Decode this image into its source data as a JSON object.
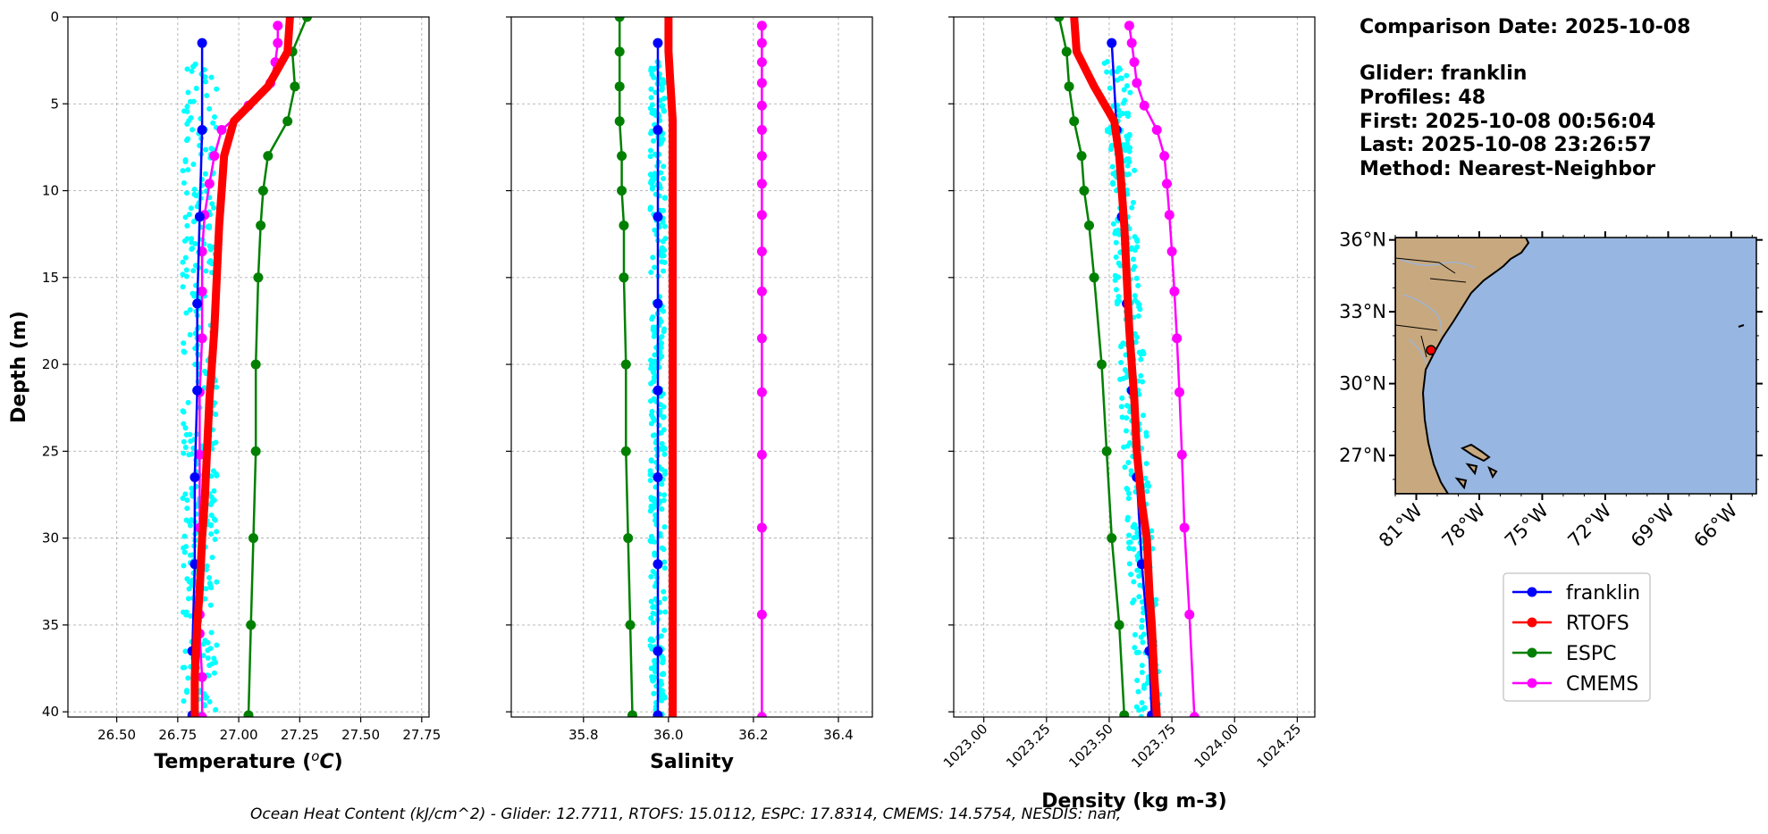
{
  "info": {
    "comparison_date": "Comparison Date: 2025-10-08",
    "glider": "Glider: franklin",
    "profiles": "Profiles: 48",
    "first": "First: 2025-10-08 00:56:04",
    "last": "Last: 2025-10-08 23:26:57",
    "method": "Method: Nearest-Neighbor"
  },
  "footer": "Ocean Heat Content (kJ/cm^2) - Glider: 12.7711,  RTOFS: 15.0112,  ESPC: 17.8314,  CMEMS: 14.5754,  NESDIS: nan,",
  "colors": {
    "franklin": "#0000ff",
    "RTOFS": "#ff0000",
    "ESPC": "#008000",
    "CMEMS": "#ff00ff",
    "glider_points": "#00ffff",
    "ocean": "#97b6e1",
    "land": "#c8a87e",
    "rivers": "#a0b4d0"
  },
  "legend": [
    {
      "label": "franklin",
      "color": "#0000ff"
    },
    {
      "label": "RTOFS",
      "color": "#ff0000"
    },
    {
      "label": "ESPC",
      "color": "#008000"
    },
    {
      "label": "CMEMS",
      "color": "#ff00ff"
    }
  ],
  "map": {
    "lat_ticks": [
      "36°N",
      "33°N",
      "30°N",
      "27°N"
    ],
    "lat_values": [
      36,
      33,
      30,
      27
    ],
    "lon_ticks": [
      "81°W",
      "78°W",
      "75°W",
      "72°W",
      "69°W",
      "66°W"
    ],
    "lon_values": [
      -81,
      -78,
      -75,
      -72,
      -69,
      -66
    ],
    "extent": {
      "lon": [
        -82,
        -64.8
      ],
      "lat": [
        25.4,
        36.1
      ]
    },
    "glider_location": {
      "lon": -80.3,
      "lat": 31.4
    }
  },
  "chart_data": [
    {
      "type": "line",
      "xlabel": "Temperature (°C)",
      "ylabel": "Depth (m)",
      "xlim": [
        26.3,
        27.78
      ],
      "ylim": [
        40.3,
        0
      ],
      "xticks": [
        26.5,
        26.75,
        27.0,
        27.25,
        27.5,
        27.75
      ],
      "xtick_labels": [
        "26.50",
        "26.75",
        "27.00",
        "27.25",
        "27.50",
        "27.75"
      ],
      "yticks": [
        0,
        5,
        10,
        15,
        20,
        25,
        30,
        35,
        40
      ],
      "ytick_labels": [
        "0",
        "5",
        "10",
        "15",
        "20",
        "25",
        "30",
        "35",
        "40"
      ],
      "glider_scatter": {
        "x_center": 26.84,
        "x_spread": 0.07,
        "depth_range": [
          2.5,
          40.3
        ]
      },
      "series": [
        {
          "name": "franklin",
          "x": [
            26.85,
            26.85,
            26.84,
            26.83,
            26.83,
            26.82,
            26.82,
            26.81,
            26.81
          ],
          "depth": [
            1.5,
            6.5,
            11.5,
            16.5,
            21.5,
            26.5,
            31.5,
            36.5,
            40.2
          ]
        },
        {
          "name": "RTOFS",
          "x": [
            27.21,
            27.2,
            27.12,
            26.98,
            26.94,
            26.93,
            26.92,
            26.91,
            26.9,
            26.89,
            26.88,
            26.87,
            26.86,
            26.85,
            26.84,
            26.83,
            26.82,
            26.82
          ],
          "depth": [
            0,
            2,
            4,
            6,
            8,
            10,
            12,
            15,
            18,
            20,
            22,
            25,
            28,
            30,
            33,
            35,
            38,
            40.3
          ]
        },
        {
          "name": "ESPC",
          "x": [
            27.28,
            27.22,
            27.23,
            27.2,
            27.12,
            27.1,
            27.09,
            27.08,
            27.07,
            27.07,
            27.06,
            27.05,
            27.04
          ],
          "depth": [
            0,
            2,
            4,
            6,
            8,
            10,
            12,
            15,
            20,
            25,
            30,
            35,
            40.2
          ]
        },
        {
          "name": "CMEMS",
          "x": [
            27.16,
            27.16,
            27.15,
            27.13,
            27.04,
            26.93,
            26.9,
            26.88,
            26.86,
            26.85,
            26.85,
            26.85,
            26.84,
            26.84,
            26.84,
            26.84,
            26.84,
            26.85,
            26.85
          ],
          "depth": [
            0.5,
            1.5,
            2.6,
            3.8,
            5.1,
            6.5,
            8.0,
            9.6,
            11.4,
            13.5,
            15.8,
            18.5,
            21.6,
            25.2,
            29.4,
            34.4,
            35.5,
            38.0,
            40.3
          ]
        }
      ]
    },
    {
      "type": "line",
      "xlabel": "Salinity",
      "xlim": [
        35.63,
        36.48
      ],
      "ylim": [
        40.3,
        0
      ],
      "xticks": [
        35.8,
        36.0,
        36.2,
        36.4
      ],
      "xtick_labels": [
        "35.8",
        "36.0",
        "36.2",
        "36.4"
      ],
      "yticks": [
        0,
        5,
        10,
        15,
        20,
        25,
        30,
        35,
        40
      ],
      "glider_scatter": {
        "x_center": 35.975,
        "x_spread": 0.018,
        "depth_range": [
          2.5,
          40.3
        ]
      },
      "series": [
        {
          "name": "franklin",
          "x": [
            35.975,
            35.975,
            35.975,
            35.975,
            35.975,
            35.975,
            35.975,
            35.975,
            35.975
          ],
          "depth": [
            1.5,
            6.5,
            11.5,
            16.5,
            21.5,
            26.5,
            31.5,
            36.5,
            40.2
          ]
        },
        {
          "name": "RTOFS",
          "x": [
            36.0,
            36.0,
            36.005,
            36.01,
            36.01,
            36.01,
            36.01,
            36.01,
            36.01,
            36.01,
            36.01,
            36.01,
            36.01,
            36.01,
            36.01,
            36.01
          ],
          "depth": [
            0,
            2,
            4,
            6,
            8,
            10,
            12,
            15,
            18,
            20,
            25,
            30,
            33,
            35,
            38,
            40.3
          ]
        },
        {
          "name": "ESPC",
          "x": [
            35.885,
            35.885,
            35.885,
            35.885,
            35.89,
            35.89,
            35.895,
            35.895,
            35.9,
            35.9,
            35.905,
            35.91,
            35.915
          ],
          "depth": [
            0,
            2,
            4,
            6,
            8,
            10,
            12,
            15,
            20,
            25,
            30,
            35,
            40.2
          ]
        },
        {
          "name": "CMEMS",
          "x": [
            36.22,
            36.22,
            36.22,
            36.22,
            36.22,
            36.22,
            36.22,
            36.22,
            36.22,
            36.22,
            36.22,
            36.22,
            36.22,
            36.22,
            36.22,
            36.22,
            36.22
          ],
          "depth": [
            0.5,
            1.5,
            2.6,
            3.8,
            5.1,
            6.5,
            8.0,
            9.6,
            11.4,
            13.5,
            15.8,
            18.5,
            21.6,
            25.2,
            29.4,
            34.4,
            40.3
          ]
        }
      ]
    },
    {
      "type": "line",
      "xlabel": "Density (kg m-3)",
      "xlim": [
        1022.88,
        1024.32
      ],
      "ylim": [
        40.3,
        0
      ],
      "xticks": [
        1023.0,
        1023.25,
        1023.5,
        1023.75,
        1024.0,
        1024.25
      ],
      "xtick_labels": [
        "1023.00",
        "1023.25",
        "1023.50",
        "1023.75",
        "1024.00",
        "1024.25"
      ],
      "yticks": [
        0,
        5,
        10,
        15,
        20,
        25,
        30,
        35,
        40
      ],
      "glider_scatter": {
        "x_center_top": 1023.52,
        "x_center_bottom": 1023.66,
        "x_spread": 0.05,
        "depth_range": [
          2.5,
          40.3
        ]
      },
      "series": [
        {
          "name": "franklin",
          "x": [
            1023.51,
            1023.53,
            1023.55,
            1023.57,
            1023.59,
            1023.61,
            1023.63,
            1023.66,
            1023.67
          ],
          "depth": [
            1.5,
            6.5,
            11.5,
            16.5,
            21.5,
            26.5,
            31.5,
            36.5,
            40.2
          ]
        },
        {
          "name": "RTOFS",
          "x": [
            1023.36,
            1023.37,
            1023.44,
            1023.52,
            1023.54,
            1023.55,
            1023.56,
            1023.57,
            1023.58,
            1023.59,
            1023.6,
            1023.61,
            1023.63,
            1023.65,
            1023.66,
            1023.67,
            1023.68,
            1023.69
          ],
          "depth": [
            0,
            2,
            4,
            6,
            8,
            10,
            12,
            15,
            18,
            20,
            22,
            25,
            28,
            30,
            33,
            35,
            38,
            40.3
          ]
        },
        {
          "name": "ESPC",
          "x": [
            1023.3,
            1023.33,
            1023.34,
            1023.36,
            1023.39,
            1023.4,
            1023.42,
            1023.44,
            1023.47,
            1023.49,
            1023.51,
            1023.54,
            1023.56
          ],
          "depth": [
            0,
            2,
            4,
            6,
            8,
            10,
            12,
            15,
            20,
            25,
            30,
            35,
            40.2
          ]
        },
        {
          "name": "CMEMS",
          "x": [
            1023.58,
            1023.59,
            1023.6,
            1023.61,
            1023.64,
            1023.69,
            1023.72,
            1023.73,
            1023.74,
            1023.75,
            1023.76,
            1023.77,
            1023.78,
            1023.79,
            1023.8,
            1023.82,
            1023.84
          ],
          "depth": [
            0.5,
            1.5,
            2.6,
            3.8,
            5.1,
            6.5,
            8.0,
            9.6,
            11.4,
            13.5,
            15.8,
            18.5,
            21.6,
            25.2,
            29.4,
            34.4,
            40.3
          ]
        }
      ]
    }
  ]
}
